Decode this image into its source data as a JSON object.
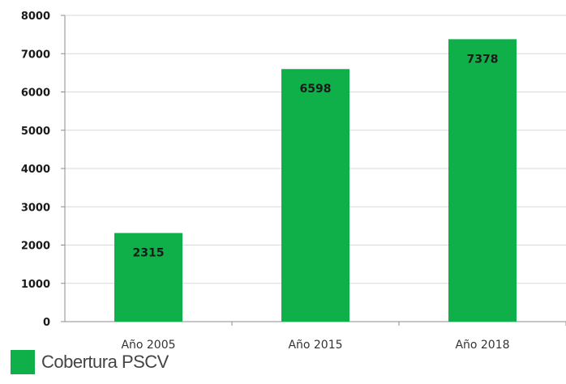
{
  "chart_data": {
    "type": "bar",
    "categories": [
      "Año 2005",
      "Año 2015",
      "Año 2018"
    ],
    "series": [
      {
        "name": "Cobertura PSCV",
        "values": [
          2315,
          6598,
          7378
        ]
      }
    ],
    "ylim": [
      0,
      8000
    ],
    "yticks": [
      0,
      1000,
      2000,
      3000,
      4000,
      5000,
      6000,
      7000,
      8000
    ],
    "grid": true,
    "data_labels": [
      "2315",
      "6598",
      "7378"
    ],
    "legend_position": "bottom-left",
    "colors": {
      "bar": "#0fb04a",
      "grid": "#d9d9d9",
      "axis": "#8c8c8c"
    }
  },
  "legend": {
    "label": "Cobertura PSCV"
  }
}
